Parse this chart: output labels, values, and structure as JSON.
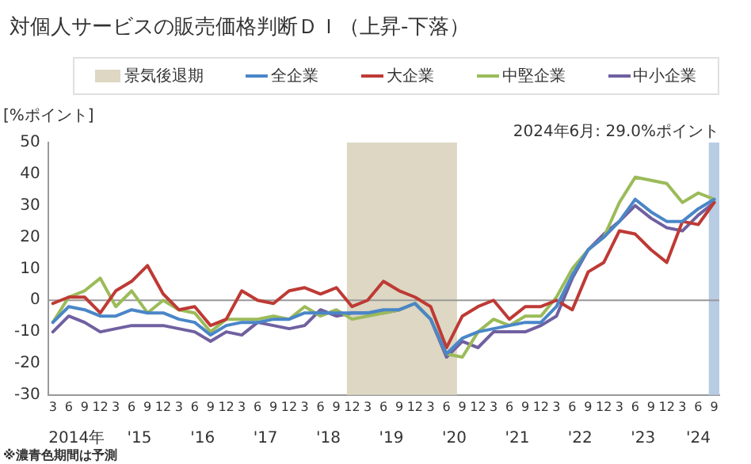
{
  "chart_data": {
    "type": "line",
    "title": "対個人サービスの販売価格判断ＤＩ（上昇-下落）",
    "ylabel": "[%ポイント]",
    "x": [
      "2014-03",
      "2014-06",
      "2014-09",
      "2014-12",
      "2015-03",
      "2015-06",
      "2015-09",
      "2015-12",
      "2016-03",
      "2016-06",
      "2016-09",
      "2016-12",
      "2017-03",
      "2017-06",
      "2017-09",
      "2017-12",
      "2018-03",
      "2018-06",
      "2018-09",
      "2018-12",
      "2019-03",
      "2019-06",
      "2019-09",
      "2019-12",
      "2020-03",
      "2020-06",
      "2020-09",
      "2020-12",
      "2021-03",
      "2021-06",
      "2021-09",
      "2021-12",
      "2022-03",
      "2022-06",
      "2022-09",
      "2022-12",
      "2023-03",
      "2023-06",
      "2023-09",
      "2023-12",
      "2024-03",
      "2024-06",
      "2024-09"
    ],
    "series": [
      {
        "name": "全企業",
        "color": "#4a86c8",
        "values": [
          -7,
          -2,
          -3,
          -5,
          -5,
          -3,
          -4,
          -4,
          -6,
          -7,
          -11,
          -8,
          -7,
          -7,
          -6,
          -6,
          -4,
          -4,
          -4,
          -4,
          -4,
          -3,
          -3,
          -1,
          -6,
          -17,
          -12,
          -10,
          -9,
          -8,
          -7,
          -7,
          -2,
          8,
          16,
          20,
          25,
          32,
          28,
          25,
          25,
          29,
          32
        ]
      },
      {
        "name": "大企業",
        "color": "#be3a35",
        "values": [
          -1,
          1,
          1,
          -4,
          3,
          6,
          11,
          2,
          -3,
          -2,
          -8,
          -6,
          3,
          0,
          -1,
          3,
          4,
          2,
          4,
          -2,
          0,
          6,
          3,
          1,
          -2,
          -15,
          -5,
          -2,
          0,
          -6,
          -2,
          -2,
          0,
          -3,
          9,
          12,
          22,
          21,
          16,
          12,
          25,
          24,
          31
        ]
      },
      {
        "name": "中堅企業",
        "color": "#9bbb59",
        "values": [
          -7,
          1,
          3,
          7,
          -2,
          3,
          -4,
          0,
          -3,
          -4,
          -10,
          -6,
          -6,
          -6,
          -5,
          -6,
          -2,
          -5,
          -3,
          -6,
          -5,
          -4,
          -3,
          -1,
          -6,
          -17,
          -18,
          -10,
          -6,
          -8,
          -5,
          -5,
          1,
          10,
          16,
          20,
          31,
          39,
          38,
          37,
          31,
          34,
          32
        ]
      },
      {
        "name": "中小企業",
        "color": "#7060a0",
        "values": [
          -10,
          -5,
          -7,
          -10,
          -9,
          -8,
          -8,
          -8,
          -9,
          -10,
          -13,
          -10,
          -11,
          -7,
          -8,
          -9,
          -8,
          -3,
          -5,
          -4,
          -4,
          -4,
          -3,
          -1,
          -6,
          -18,
          -13,
          -15,
          -10,
          -10,
          -10,
          -8,
          -5,
          7,
          16,
          21,
          25,
          30,
          26,
          23,
          22,
          27,
          31
        ]
      }
    ],
    "xlim": [
      "2014-02",
      "2024-10"
    ],
    "xticks": [
      {
        "value": "2014-03",
        "label": "3"
      },
      {
        "value": "2014-06",
        "label": "6"
      },
      {
        "value": "2014-09",
        "label": "9"
      },
      {
        "value": "2014-12",
        "label": "12"
      },
      {
        "value": "2015-03",
        "label": "3"
      },
      {
        "value": "2015-06",
        "label": "6"
      },
      {
        "value": "2015-09",
        "label": "9"
      },
      {
        "value": "2015-12",
        "label": "12"
      },
      {
        "value": "2016-03",
        "label": "3"
      },
      {
        "value": "2016-06",
        "label": "6"
      },
      {
        "value": "2016-09",
        "label": "9"
      },
      {
        "value": "2016-12",
        "label": "12"
      },
      {
        "value": "2017-03",
        "label": "3"
      },
      {
        "value": "2017-06",
        "label": "6"
      },
      {
        "value": "2017-09",
        "label": "9"
      },
      {
        "value": "2017-12",
        "label": "12"
      },
      {
        "value": "2018-03",
        "label": "3"
      },
      {
        "value": "2018-06",
        "label": "6"
      },
      {
        "value": "2018-09",
        "label": "9"
      },
      {
        "value": "2018-12",
        "label": "12"
      },
      {
        "value": "2019-03",
        "label": "3"
      },
      {
        "value": "2019-06",
        "label": "6"
      },
      {
        "value": "2019-09",
        "label": "9"
      },
      {
        "value": "2019-12",
        "label": "12"
      },
      {
        "value": "2020-03",
        "label": "3"
      },
      {
        "value": "2020-06",
        "label": "6"
      },
      {
        "value": "2020-09",
        "label": "9"
      },
      {
        "value": "2020-12",
        "label": "12"
      },
      {
        "value": "2021-03",
        "label": "3"
      },
      {
        "value": "2021-06",
        "label": "6"
      },
      {
        "value": "2021-09",
        "label": "9"
      },
      {
        "value": "2021-12",
        "label": "12"
      },
      {
        "value": "2022-03",
        "label": "3"
      },
      {
        "value": "2022-06",
        "label": "6"
      },
      {
        "value": "2022-09",
        "label": "9"
      },
      {
        "value": "2022-12",
        "label": "12"
      },
      {
        "value": "2023-03",
        "label": "3"
      },
      {
        "value": "2023-06",
        "label": "6"
      },
      {
        "value": "2023-09",
        "label": "9"
      },
      {
        "value": "2023-12",
        "label": "12"
      },
      {
        "value": "2024-03",
        "label": "3"
      },
      {
        "value": "2024-06",
        "label": "6"
      },
      {
        "value": "2024-09",
        "label": "9"
      }
    ],
    "ylim": [
      -30,
      50
    ],
    "yticks": [
      -30,
      -20,
      -10,
      0,
      10,
      20,
      30,
      40,
      50
    ],
    "bands": [
      {
        "axis": "x",
        "from": "2018-11",
        "to": "2020-08",
        "label": "景気後退期",
        "color": "#ddd7c3"
      },
      {
        "axis": "x",
        "from": "2024-08",
        "to": "2024-10",
        "color": "#b8cce4"
      }
    ],
    "ref_lines": [
      {
        "axis": "y",
        "value": 0,
        "color": "#999999"
      }
    ],
    "annotations": [
      "2024年6月: 29.0%ポイント",
      "※濃青色期間は予測",
      "2014年",
      "'15",
      "'16",
      "'17",
      "'18",
      "'19",
      "'20",
      "'21",
      "'22",
      "'23",
      "'24"
    ],
    "grid": false,
    "legend": "top",
    "marker": "none",
    "line_style": "solid"
  }
}
